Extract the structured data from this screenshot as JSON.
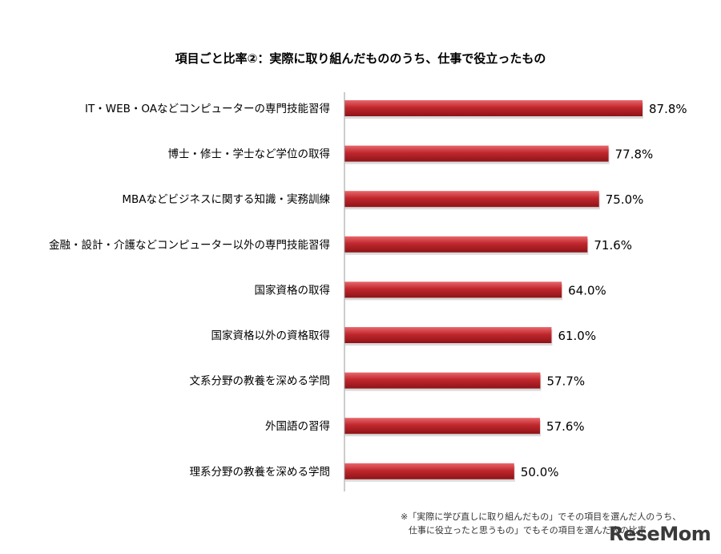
{
  "chart_data": {
    "type": "bar",
    "orientation": "horizontal",
    "title": "項目ごと比率②：実際に取り組んだもののうち、仕事で役立ったもの",
    "categories": [
      "IT・WEB・OAなどコンピューターの専門技能習得",
      "博士・修士・学士など学位の取得",
      "MBAなどビジネスに関する知識・実務訓練",
      "金融・設計・介護などコンピューター以外の専門技能習得",
      "国家資格の取得",
      "国家資格以外の資格取得",
      "文系分野の教養を深める学問",
      "外国語の習得",
      "理系分野の教養を深める学問"
    ],
    "values": [
      87.8,
      77.8,
      75.0,
      71.6,
      64.0,
      61.0,
      57.7,
      57.6,
      50.0
    ],
    "value_labels": [
      "87.8%",
      "77.8%",
      "75.0%",
      "71.6%",
      "64.0%",
      "61.0%",
      "57.7%",
      "57.6%",
      "50.0%"
    ],
    "xlim": [
      0,
      100
    ],
    "bar_color": "#c0272d",
    "grid": false
  },
  "note": {
    "line1": "※「実際に学び直しに取り組んだもの」でその項目を選んだ人のうち、",
    "line2": "仕事に役立ったと思うもの」でもその項目を選んだ人の比率"
  },
  "logo": "ReseMom"
}
